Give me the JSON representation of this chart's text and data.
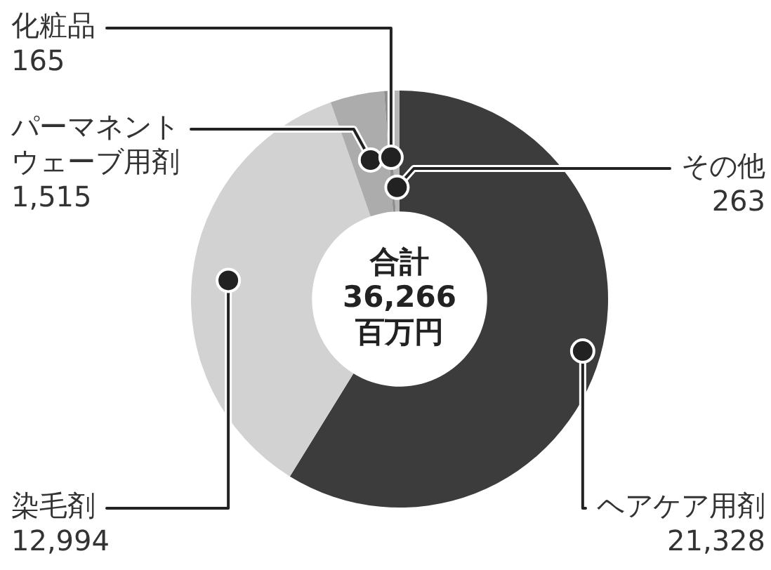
{
  "chart_data": {
    "type": "donut",
    "categories": [
      "ヘアケア用剤",
      "染毛剤",
      "パーマネントウェーブ用剤",
      "化粧品",
      "その他"
    ],
    "values": [
      21328,
      12994,
      1515,
      165,
      263
    ],
    "value_labels": [
      "21,328",
      "12,994",
      "1,515",
      "165",
      "263"
    ],
    "colors": [
      "#3c3c3c",
      "#d2d2d2",
      "#acacac",
      "#8f8f8f",
      "#b5b5b5"
    ],
    "annotations": [
      "合計",
      "36,266",
      "百万円"
    ]
  }
}
